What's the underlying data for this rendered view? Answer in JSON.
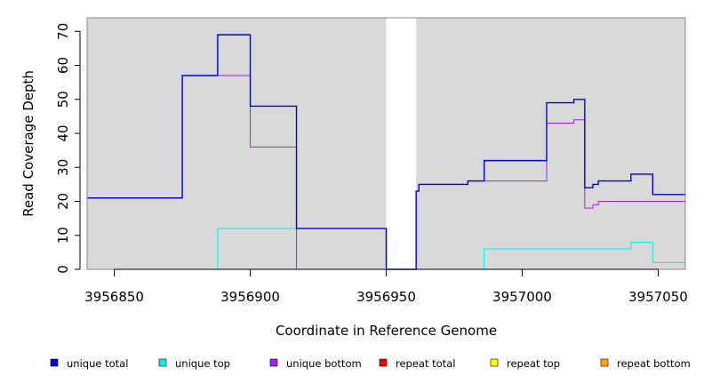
{
  "chart_data": {
    "type": "line",
    "xlabel": "Coordinate in Reference Genome",
    "ylabel": "Read Coverage Depth",
    "xlim": [
      3956840,
      3957060
    ],
    "ylim": [
      0,
      74
    ],
    "x_ticks": [
      3956850,
      3956900,
      3956950,
      3957000,
      3957050
    ],
    "x_tick_labels": [
      "3956850",
      "3956900",
      "3956950",
      "3957000",
      "3957050"
    ],
    "y_ticks": [
      0,
      10,
      20,
      30,
      40,
      50,
      60,
      70
    ],
    "y_tick_labels": [
      "0",
      "10",
      "20",
      "30",
      "40",
      "50",
      "60",
      "70"
    ],
    "background": "#d9d9d9",
    "gap_regions": [
      [
        3956950,
        3956961
      ]
    ],
    "legend_placement": "bottom",
    "series": [
      {
        "name": "unique total",
        "color": "#0000ee",
        "points": [
          [
            3956840,
            21
          ],
          [
            3956875,
            21
          ],
          [
            3956875,
            57
          ],
          [
            3956888,
            57
          ],
          [
            3956888,
            69
          ],
          [
            3956900,
            69
          ],
          [
            3956900,
            48
          ],
          [
            3956917,
            48
          ],
          [
            3956917,
            12
          ],
          [
            3956950,
            12
          ],
          [
            3956950,
            0
          ],
          [
            3956961,
            0
          ],
          [
            3956961,
            23
          ],
          [
            3956962,
            23
          ],
          [
            3956962,
            25
          ],
          [
            3956980,
            25
          ],
          [
            3956980,
            26
          ],
          [
            3956986,
            26
          ],
          [
            3956986,
            32
          ],
          [
            3957009,
            32
          ],
          [
            3957009,
            49
          ],
          [
            3957019,
            49
          ],
          [
            3957019,
            50
          ],
          [
            3957023,
            50
          ],
          [
            3957023,
            24
          ],
          [
            3957026,
            24
          ],
          [
            3957026,
            25
          ],
          [
            3957028,
            25
          ],
          [
            3957028,
            26
          ],
          [
            3957040,
            26
          ],
          [
            3957040,
            28
          ],
          [
            3957048,
            28
          ],
          [
            3957048,
            22
          ],
          [
            3957060,
            22
          ]
        ]
      },
      {
        "name": "unique top",
        "color": "#00eeee",
        "points": [
          [
            3956840,
            0
          ],
          [
            3956888,
            0
          ],
          [
            3956888,
            12
          ],
          [
            3956950,
            12
          ],
          [
            3956950,
            0
          ],
          [
            3956986,
            0
          ],
          [
            3956986,
            6
          ],
          [
            3957040,
            6
          ],
          [
            3957040,
            8
          ],
          [
            3957048,
            8
          ],
          [
            3957048,
            2
          ],
          [
            3957060,
            2
          ]
        ]
      },
      {
        "name": "unique bottom",
        "color": "#a020f0",
        "points": [
          [
            3956840,
            21
          ],
          [
            3956875,
            21
          ],
          [
            3956875,
            57
          ],
          [
            3956900,
            57
          ],
          [
            3956900,
            36
          ],
          [
            3956917,
            36
          ],
          [
            3956917,
            0
          ],
          [
            3956961,
            0
          ],
          [
            3956961,
            23
          ],
          [
            3956962,
            23
          ],
          [
            3956962,
            25
          ],
          [
            3956980,
            25
          ],
          [
            3956980,
            26
          ],
          [
            3957009,
            26
          ],
          [
            3957009,
            43
          ],
          [
            3957019,
            43
          ],
          [
            3957019,
            44
          ],
          [
            3957023,
            44
          ],
          [
            3957023,
            18
          ],
          [
            3957026,
            18
          ],
          [
            3957026,
            19
          ],
          [
            3957028,
            19
          ],
          [
            3957028,
            20
          ],
          [
            3957060,
            20
          ]
        ]
      },
      {
        "name": "repeat total",
        "color": "#ee0000",
        "points": [
          [
            3956840,
            0
          ],
          [
            3957060,
            0
          ]
        ]
      },
      {
        "name": "repeat top",
        "color": "#ffff00",
        "points": [
          [
            3956840,
            0
          ],
          [
            3957060,
            0
          ]
        ]
      },
      {
        "name": "repeat bottom",
        "color": "#ffa500",
        "points": [
          [
            3956840,
            0
          ],
          [
            3957060,
            0
          ]
        ]
      }
    ]
  }
}
